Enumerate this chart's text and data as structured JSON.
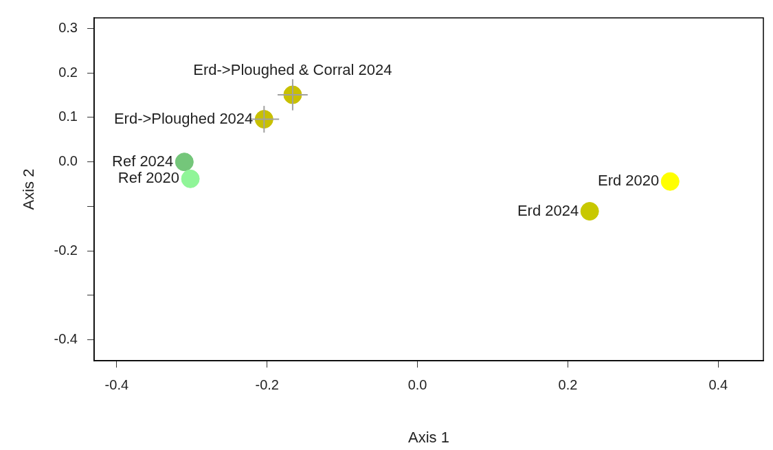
{
  "chart_data": {
    "type": "scatter",
    "xlabel": "Axis 1",
    "ylabel": "Axis 2",
    "xlim": [
      -0.43,
      0.46
    ],
    "ylim": [
      -0.447,
      0.324
    ],
    "xticks": [
      -0.4,
      -0.2,
      {
        "value": 0.0,
        "label": "0.0"
      },
      0.2,
      0.4
    ],
    "yticks": [
      {
        "value": -0.4,
        "label": "-0.4"
      },
      {
        "value": -0.3,
        "label": null
      },
      {
        "value": -0.2,
        "label": "-0.2"
      },
      {
        "value": -0.1,
        "label": null
      },
      {
        "value": 0.0,
        "label": "0.0"
      },
      0.1,
      0.2,
      0.3
    ],
    "grid": false,
    "legend": false,
    "marker": "circle",
    "series": [
      {
        "x": [
          -0.31,
          -0.302,
          -0.204,
          -0.166,
          0.336,
          0.229
        ],
        "values": [
          0.0,
          -0.038,
          0.096,
          0.151,
          -0.044,
          -0.111
        ],
        "colors": [
          "#74c67a",
          "#90f598",
          "#c8c000",
          "#c8c000",
          "#ffff00",
          "#c8c800"
        ],
        "errors": [
          null,
          null,
          0.03,
          0.035,
          null,
          null
        ],
        "xerrors": [
          null,
          null,
          0.02,
          0.02,
          null,
          null
        ]
      }
    ],
    "annotations": [
      {
        "text": "Ref 2024",
        "x": -0.31,
        "y": 0.0
      },
      {
        "text": "Ref 2020",
        "x": -0.302,
        "y": -0.038
      },
      {
        "text": "Erd->Ploughed 2024",
        "x": -0.204,
        "y": 0.096
      },
      {
        "text": "Erd->Ploughed & Corral 2024",
        "x": -0.166,
        "y": 0.151
      },
      {
        "text": "Erd 2020",
        "x": 0.336,
        "y": -0.044
      },
      {
        "text": "Erd 2024",
        "x": 0.229,
        "y": -0.111
      }
    ]
  }
}
